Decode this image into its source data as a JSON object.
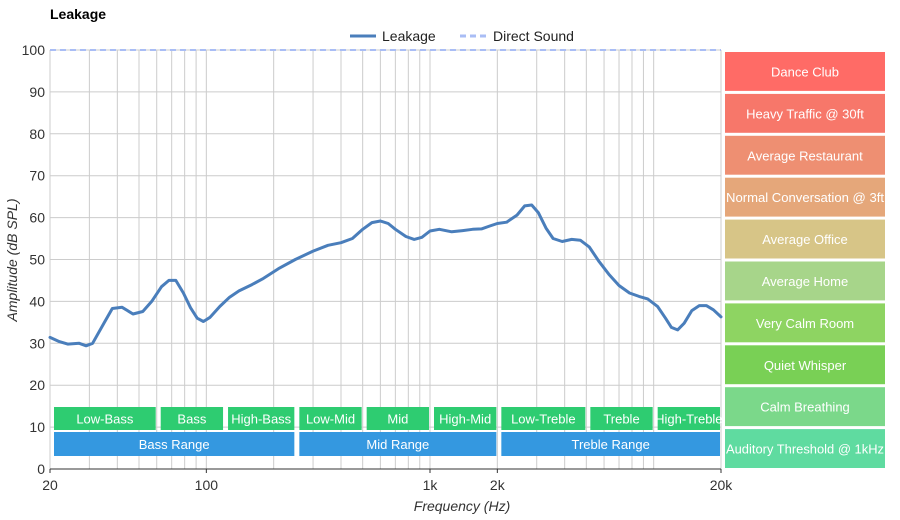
{
  "chart_data": {
    "type": "line",
    "title": "Leakage",
    "xlabel": "Frequency (Hz)",
    "ylabel": "Amplitude (dB SPL)",
    "x_scale": "log",
    "xlim": [
      20,
      20000
    ],
    "ylim": [
      0,
      100
    ],
    "grid": true,
    "legend_position": "top-center",
    "xticks": [
      {
        "value": 20,
        "label": "20"
      },
      {
        "value": 100,
        "label": "100"
      },
      {
        "value": 1000,
        "label": "1k"
      },
      {
        "value": 2000,
        "label": "2k"
      },
      {
        "value": 20000,
        "label": "20k"
      }
    ],
    "yticks": [
      0,
      10,
      20,
      30,
      40,
      50,
      60,
      70,
      80,
      90,
      100
    ],
    "series": [
      {
        "name": "Leakage",
        "color": "#4a7ebb",
        "style": "solid",
        "points": [
          [
            20,
            31.4
          ],
          [
            22,
            30.4
          ],
          [
            24,
            29.8
          ],
          [
            27,
            30.0
          ],
          [
            29,
            29.4
          ],
          [
            31,
            30.0
          ],
          [
            35,
            35.0
          ],
          [
            38,
            38.3
          ],
          [
            42,
            38.6
          ],
          [
            47,
            37.0
          ],
          [
            52,
            37.6
          ],
          [
            57,
            40.0
          ],
          [
            63,
            43.5
          ],
          [
            68,
            45.0
          ],
          [
            73,
            45.0
          ],
          [
            79,
            42.0
          ],
          [
            85,
            38.5
          ],
          [
            91,
            36.0
          ],
          [
            97,
            35.2
          ],
          [
            104,
            36.2
          ],
          [
            115,
            38.8
          ],
          [
            127,
            41.0
          ],
          [
            140,
            42.5
          ],
          [
            160,
            44.0
          ],
          [
            180,
            45.5
          ],
          [
            210,
            47.8
          ],
          [
            250,
            50.0
          ],
          [
            300,
            52.0
          ],
          [
            350,
            53.4
          ],
          [
            400,
            54.0
          ],
          [
            450,
            55.0
          ],
          [
            500,
            57.2
          ],
          [
            550,
            58.8
          ],
          [
            600,
            59.2
          ],
          [
            650,
            58.6
          ],
          [
            700,
            57.2
          ],
          [
            780,
            55.5
          ],
          [
            850,
            54.8
          ],
          [
            920,
            55.3
          ],
          [
            1000,
            56.8
          ],
          [
            1100,
            57.2
          ],
          [
            1250,
            56.6
          ],
          [
            1400,
            56.9
          ],
          [
            1550,
            57.2
          ],
          [
            1700,
            57.3
          ],
          [
            1850,
            58.0
          ],
          [
            2000,
            58.6
          ],
          [
            2200,
            58.9
          ],
          [
            2450,
            60.6
          ],
          [
            2650,
            62.8
          ],
          [
            2850,
            63.0
          ],
          [
            3050,
            61.2
          ],
          [
            3300,
            57.5
          ],
          [
            3550,
            55.0
          ],
          [
            3900,
            54.3
          ],
          [
            4300,
            54.8
          ],
          [
            4700,
            54.6
          ],
          [
            5150,
            53.0
          ],
          [
            5700,
            49.5
          ],
          [
            6300,
            46.5
          ],
          [
            7000,
            43.8
          ],
          [
            7800,
            42.0
          ],
          [
            8600,
            41.2
          ],
          [
            9400,
            40.6
          ],
          [
            10400,
            38.8
          ],
          [
            11300,
            36.0
          ],
          [
            12000,
            33.8
          ],
          [
            12800,
            33.2
          ],
          [
            13700,
            34.8
          ],
          [
            14800,
            37.8
          ],
          [
            16000,
            39.0
          ],
          [
            17200,
            39.0
          ],
          [
            18500,
            38.0
          ],
          [
            20000,
            36.3
          ]
        ]
      },
      {
        "name": "Direct Sound",
        "color": "#a9bdf5",
        "style": "dashed",
        "points": [
          [
            20,
            100
          ],
          [
            20000,
            100
          ]
        ]
      }
    ],
    "bands": [
      {
        "label": "Low-Bass",
        "from": 20,
        "to": 60,
        "color": "#2ecc71",
        "row": 1
      },
      {
        "label": "Bass",
        "from": 60,
        "to": 120,
        "color": "#2ecc71",
        "row": 1
      },
      {
        "label": "High-Bass",
        "from": 120,
        "to": 250,
        "color": "#2ecc71",
        "row": 1
      },
      {
        "label": "Low-Mid",
        "from": 250,
        "to": 500,
        "color": "#2ecc71",
        "row": 1
      },
      {
        "label": "Mid",
        "from": 500,
        "to": 1000,
        "color": "#2ecc71",
        "row": 1
      },
      {
        "label": "High-Mid",
        "from": 1000,
        "to": 2000,
        "color": "#2ecc71",
        "row": 1
      },
      {
        "label": "Low-Treble",
        "from": 2000,
        "to": 5000,
        "color": "#2ecc71",
        "row": 1
      },
      {
        "label": "Treble",
        "from": 5000,
        "to": 10000,
        "color": "#2ecc71",
        "row": 1
      },
      {
        "label": "High-Treble",
        "from": 10000,
        "to": 20000,
        "color": "#2ecc71",
        "row": 1
      },
      {
        "label": "Bass Range",
        "from": 20,
        "to": 250,
        "color": "#3498e0",
        "row": 2
      },
      {
        "label": "Mid Range",
        "from": 250,
        "to": 2000,
        "color": "#3498e0",
        "row": 2
      },
      {
        "label": "Treble Range",
        "from": 2000,
        "to": 20000,
        "color": "#3498e0",
        "row": 2
      }
    ],
    "reference_levels": [
      {
        "label": "Dance Club",
        "from": 90,
        "to": 100,
        "color": "#ff6b66"
      },
      {
        "label": "Heavy Traffic @ 30ft",
        "from": 80,
        "to": 90,
        "color": "#f7776a"
      },
      {
        "label": "Average Restaurant",
        "from": 70,
        "to": 80,
        "color": "#ee8f72"
      },
      {
        "label": "Normal Conversation @ 3ft",
        "from": 60,
        "to": 70,
        "color": "#e5a77a"
      },
      {
        "label": "Average Office",
        "from": 50,
        "to": 60,
        "color": "#d7c587"
      },
      {
        "label": "Average Home",
        "from": 40,
        "to": 50,
        "color": "#a7d58a"
      },
      {
        "label": "Very Calm Room",
        "from": 30,
        "to": 40,
        "color": "#8ed462"
      },
      {
        "label": "Quiet Whisper",
        "from": 20,
        "to": 30,
        "color": "#79d055"
      },
      {
        "label": "Calm Breathing",
        "from": 10,
        "to": 20,
        "color": "#7bd88a"
      },
      {
        "label": "Auditory Threshold @ 1kHz",
        "from": 0,
        "to": 10,
        "color": "#5fdba0"
      }
    ]
  }
}
